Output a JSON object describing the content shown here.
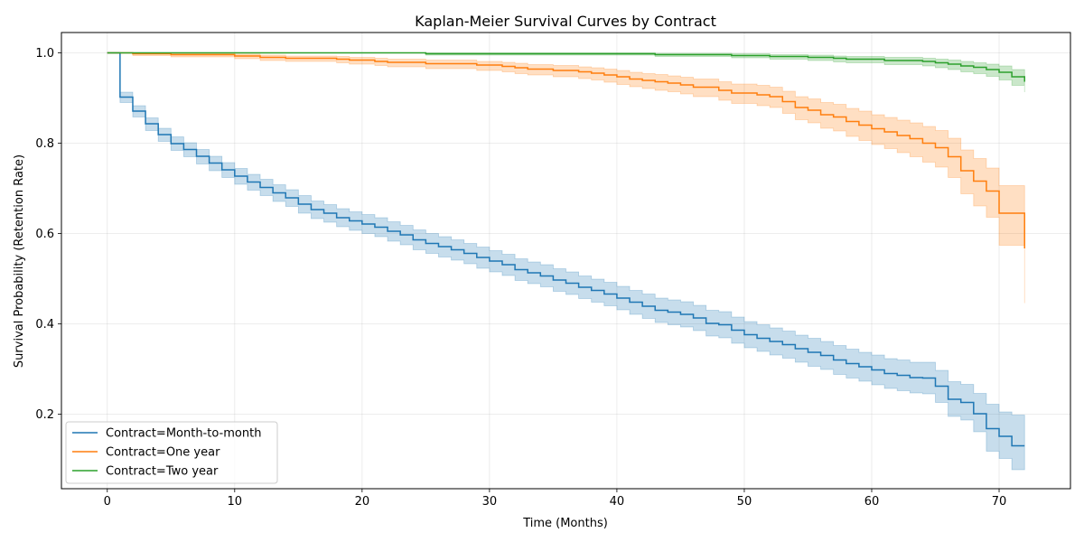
{
  "chart_data": {
    "type": "line",
    "title": "Kaplan-Meier Survival Curves by Contract",
    "xlabel": "Time (Months)",
    "ylabel": "Survival Probability (Retention Rate)",
    "xlim": [
      -3.6,
      75.6
    ],
    "ylim": [
      0.035,
      1.045
    ],
    "x_ticks": [
      0,
      10,
      20,
      30,
      40,
      50,
      60,
      70
    ],
    "y_ticks": [
      0.2,
      0.4,
      0.6,
      0.8,
      1.0
    ],
    "x_tick_labels": [
      "0",
      "10",
      "20",
      "30",
      "40",
      "50",
      "60",
      "70"
    ],
    "y_tick_labels": [
      "0.2",
      "0.4",
      "0.6",
      "0.8",
      "1.0"
    ],
    "grid": true,
    "legend_position": "lower-left",
    "step": "post",
    "series": [
      {
        "name": "Contract=Month-to-month",
        "color": "#1f77b4",
        "x": [
          0,
          1,
          2,
          3,
          4,
          5,
          6,
          7,
          8,
          9,
          10,
          11,
          12,
          13,
          14,
          15,
          16,
          17,
          18,
          19,
          20,
          21,
          22,
          23,
          24,
          25,
          26,
          27,
          28,
          29,
          30,
          31,
          32,
          33,
          34,
          35,
          36,
          37,
          38,
          39,
          40,
          41,
          42,
          43,
          44,
          45,
          46,
          47,
          48,
          49,
          50,
          51,
          52,
          53,
          54,
          55,
          56,
          57,
          58,
          59,
          60,
          61,
          62,
          63,
          64,
          65,
          66,
          67,
          68,
          69,
          70,
          71,
          72
        ],
        "y": [
          1.0,
          0.902,
          0.871,
          0.843,
          0.819,
          0.799,
          0.786,
          0.771,
          0.756,
          0.741,
          0.727,
          0.714,
          0.702,
          0.69,
          0.679,
          0.665,
          0.653,
          0.645,
          0.635,
          0.628,
          0.621,
          0.614,
          0.605,
          0.597,
          0.586,
          0.578,
          0.571,
          0.564,
          0.556,
          0.547,
          0.539,
          0.531,
          0.52,
          0.513,
          0.506,
          0.497,
          0.49,
          0.481,
          0.474,
          0.466,
          0.457,
          0.448,
          0.439,
          0.43,
          0.426,
          0.421,
          0.413,
          0.401,
          0.398,
          0.386,
          0.376,
          0.368,
          0.361,
          0.354,
          0.345,
          0.337,
          0.33,
          0.32,
          0.312,
          0.305,
          0.298,
          0.29,
          0.286,
          0.281,
          0.28,
          0.262,
          0.233,
          0.226,
          0.201,
          0.168,
          0.151,
          0.13,
          0.13
        ],
        "ci_lower": [
          1.0,
          0.89,
          0.858,
          0.828,
          0.804,
          0.784,
          0.77,
          0.754,
          0.739,
          0.724,
          0.709,
          0.696,
          0.684,
          0.671,
          0.66,
          0.645,
          0.633,
          0.625,
          0.615,
          0.607,
          0.6,
          0.593,
          0.583,
          0.575,
          0.564,
          0.556,
          0.548,
          0.541,
          0.533,
          0.523,
          0.515,
          0.507,
          0.496,
          0.489,
          0.482,
          0.472,
          0.465,
          0.456,
          0.448,
          0.44,
          0.431,
          0.421,
          0.412,
          0.403,
          0.398,
          0.393,
          0.385,
          0.373,
          0.369,
          0.357,
          0.347,
          0.339,
          0.331,
          0.324,
          0.315,
          0.306,
          0.299,
          0.288,
          0.28,
          0.273,
          0.265,
          0.257,
          0.252,
          0.247,
          0.245,
          0.226,
          0.195,
          0.187,
          0.161,
          0.118,
          0.102,
          0.077,
          0.077
        ],
        "ci_upper": [
          1.0,
          0.913,
          0.883,
          0.856,
          0.833,
          0.814,
          0.801,
          0.786,
          0.771,
          0.757,
          0.744,
          0.731,
          0.72,
          0.708,
          0.697,
          0.684,
          0.672,
          0.664,
          0.655,
          0.648,
          0.642,
          0.635,
          0.626,
          0.618,
          0.608,
          0.6,
          0.593,
          0.586,
          0.578,
          0.57,
          0.562,
          0.554,
          0.544,
          0.537,
          0.531,
          0.522,
          0.515,
          0.506,
          0.499,
          0.492,
          0.483,
          0.474,
          0.466,
          0.457,
          0.453,
          0.449,
          0.441,
          0.43,
          0.427,
          0.415,
          0.405,
          0.398,
          0.391,
          0.384,
          0.375,
          0.368,
          0.361,
          0.352,
          0.344,
          0.337,
          0.331,
          0.323,
          0.32,
          0.315,
          0.315,
          0.297,
          0.272,
          0.266,
          0.246,
          0.222,
          0.205,
          0.198,
          0.198
        ]
      },
      {
        "name": "Contract=One year",
        "color": "#ff7f0e",
        "x": [
          0,
          2,
          5,
          10,
          12,
          14,
          18,
          19,
          21,
          22,
          25,
          29,
          31,
          32,
          33,
          35,
          37,
          38,
          39,
          40,
          41,
          42,
          43,
          44,
          45,
          46,
          48,
          49,
          51,
          52,
          53,
          54,
          55,
          56,
          57,
          58,
          59,
          60,
          61,
          62,
          63,
          64,
          65,
          66,
          67,
          68,
          69,
          70,
          71,
          72
        ],
        "y": [
          1.0,
          0.998,
          0.996,
          0.993,
          0.99,
          0.988,
          0.986,
          0.984,
          0.981,
          0.979,
          0.976,
          0.973,
          0.97,
          0.967,
          0.964,
          0.961,
          0.958,
          0.955,
          0.951,
          0.947,
          0.942,
          0.939,
          0.936,
          0.933,
          0.929,
          0.924,
          0.917,
          0.911,
          0.907,
          0.903,
          0.892,
          0.879,
          0.873,
          0.863,
          0.858,
          0.848,
          0.84,
          0.832,
          0.825,
          0.817,
          0.81,
          0.8,
          0.79,
          0.77,
          0.739,
          0.716,
          0.694,
          0.645,
          0.645,
          0.567
        ],
        "ci_lower": [
          1.0,
          0.994,
          0.991,
          0.987,
          0.983,
          0.981,
          0.978,
          0.975,
          0.972,
          0.969,
          0.965,
          0.961,
          0.958,
          0.954,
          0.951,
          0.947,
          0.943,
          0.94,
          0.935,
          0.93,
          0.925,
          0.921,
          0.917,
          0.914,
          0.909,
          0.903,
          0.895,
          0.888,
          0.883,
          0.879,
          0.866,
          0.852,
          0.845,
          0.833,
          0.827,
          0.815,
          0.806,
          0.797,
          0.788,
          0.779,
          0.77,
          0.758,
          0.747,
          0.724,
          0.688,
          0.661,
          0.636,
          0.574,
          0.574,
          0.446
        ],
        "ci_upper": [
          1.0,
          1.0,
          0.999,
          0.997,
          0.995,
          0.993,
          0.992,
          0.99,
          0.988,
          0.986,
          0.984,
          0.981,
          0.979,
          0.977,
          0.974,
          0.972,
          0.969,
          0.967,
          0.964,
          0.961,
          0.957,
          0.954,
          0.952,
          0.949,
          0.946,
          0.942,
          0.936,
          0.931,
          0.928,
          0.924,
          0.915,
          0.903,
          0.898,
          0.89,
          0.886,
          0.877,
          0.871,
          0.863,
          0.857,
          0.851,
          0.845,
          0.837,
          0.828,
          0.811,
          0.785,
          0.766,
          0.745,
          0.706,
          0.706,
          0.655
        ]
      },
      {
        "name": "Contract=Two year",
        "color": "#2ca02c",
        "x": [
          0,
          25,
          43,
          49,
          52,
          55,
          57,
          58,
          61,
          64,
          65,
          66,
          67,
          68,
          69,
          70,
          71,
          72
        ],
        "y": [
          1.0,
          0.998,
          0.996,
          0.994,
          0.992,
          0.99,
          0.988,
          0.986,
          0.983,
          0.981,
          0.978,
          0.975,
          0.971,
          0.968,
          0.963,
          0.957,
          0.947,
          0.936
        ],
        "ci_lower": [
          1.0,
          0.995,
          0.992,
          0.989,
          0.986,
          0.983,
          0.98,
          0.978,
          0.974,
          0.971,
          0.967,
          0.963,
          0.958,
          0.954,
          0.948,
          0.94,
          0.928,
          0.913
        ],
        "ci_upper": [
          1.0,
          1.0,
          0.999,
          0.998,
          0.996,
          0.995,
          0.993,
          0.992,
          0.99,
          0.988,
          0.986,
          0.984,
          0.981,
          0.978,
          0.975,
          0.971,
          0.963,
          0.955
        ]
      }
    ]
  }
}
